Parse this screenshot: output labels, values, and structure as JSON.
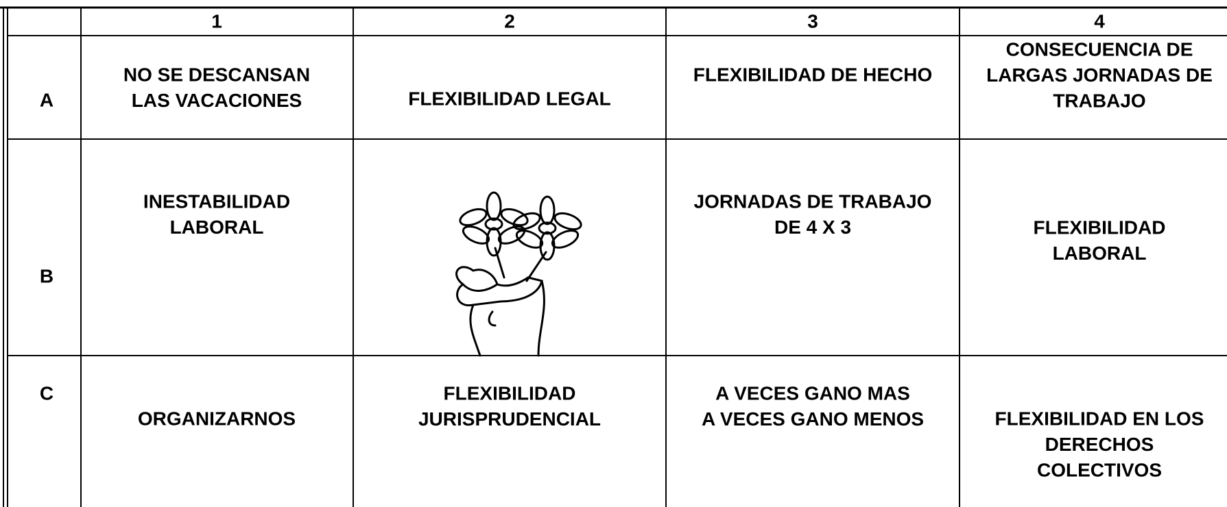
{
  "table": {
    "header": [
      "1",
      "2",
      "3",
      "4"
    ],
    "rows": [
      {
        "label": "A",
        "cells": [
          [
            "NO SE DESCANSAN",
            "LAS VACACIONES"
          ],
          [
            "FLEXIBILIDAD LEGAL"
          ],
          [
            "FLEXIBILIDAD DE HECHO"
          ],
          [
            "CONSECUENCIA DE",
            "LARGAS JORNADAS DE",
            "TRABAJO"
          ]
        ]
      },
      {
        "label": "B",
        "cells": [
          [
            "INESTABILIDAD",
            "LABORAL"
          ],
          null,
          [
            "JORNADAS DE TRABAJO",
            "DE 4 X 3"
          ],
          [
            "FLEXIBILIDAD",
            "LABORAL"
          ]
        ]
      },
      {
        "label": "C",
        "cells": [
          [
            "ORGANIZARNOS"
          ],
          [
            "FLEXIBILIDAD",
            "JURISPRUDENCIAL"
          ],
          [
            "A VECES GANO MAS",
            "A VECES GANO MENOS"
          ],
          [
            "FLEXIBILIDAD EN LOS",
            "DERECHOS",
            "COLECTIVOS"
          ]
        ]
      }
    ]
  }
}
